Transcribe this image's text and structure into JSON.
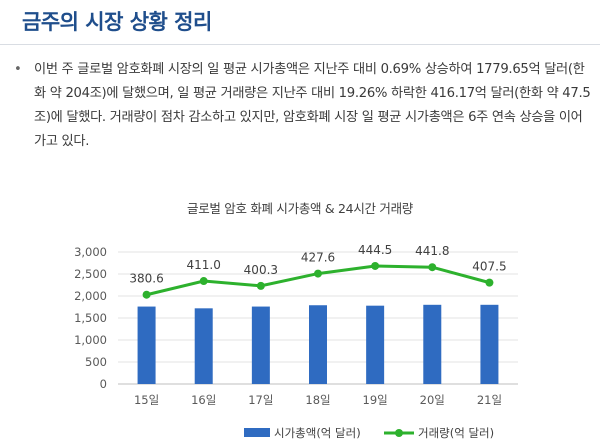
{
  "page": {
    "title": "금주의 시장 상황 정리",
    "bullet": "•",
    "summary": "이번 주 글로벌 암호화폐 시장의 일 평균 시가총액은 지난주 대비 0.69% 상승하여 1779.65억 달러(한화 약 204조)에 달했으며, 일 평균 거래량은 지난주 대비 19.26% 하락한 416.17억 달러(한화 약 47.5조)에 달했다. 거래량이 점차 감소하고 있지만, 암호화폐 시장 일 평균 시가총액은 6주 연속 상승을 이어가고 있다."
  },
  "chart_data": {
    "type": "bar",
    "title": "글로벌 암호 화폐 시가총액 & 24시간 거래량",
    "categories": [
      "15일",
      "16일",
      "17일",
      "18일",
      "19일",
      "20일",
      "21일"
    ],
    "series": [
      {
        "name": "시가총액(억 달러)",
        "type": "bar",
        "values": [
          1760,
          1720,
          1760,
          1790,
          1780,
          1800,
          1800
        ],
        "color": "#2f6bc1"
      },
      {
        "name": "거래량(억 달러)",
        "type": "line",
        "values": [
          380.6,
          411.0,
          400.3,
          427.6,
          444.5,
          441.8,
          407.5
        ],
        "labels": [
          "380.6",
          "411.0",
          "400.3",
          "427.6",
          "444.5",
          "441.8",
          "407.5"
        ],
        "color": "#2db12d"
      }
    ],
    "yticks": [
      "0",
      "500",
      "1,000",
      "1,500",
      "2,000",
      "2,500",
      "3,000"
    ],
    "ylim": [
      0,
      3000
    ],
    "grid": true,
    "legend_position": "bottom"
  }
}
